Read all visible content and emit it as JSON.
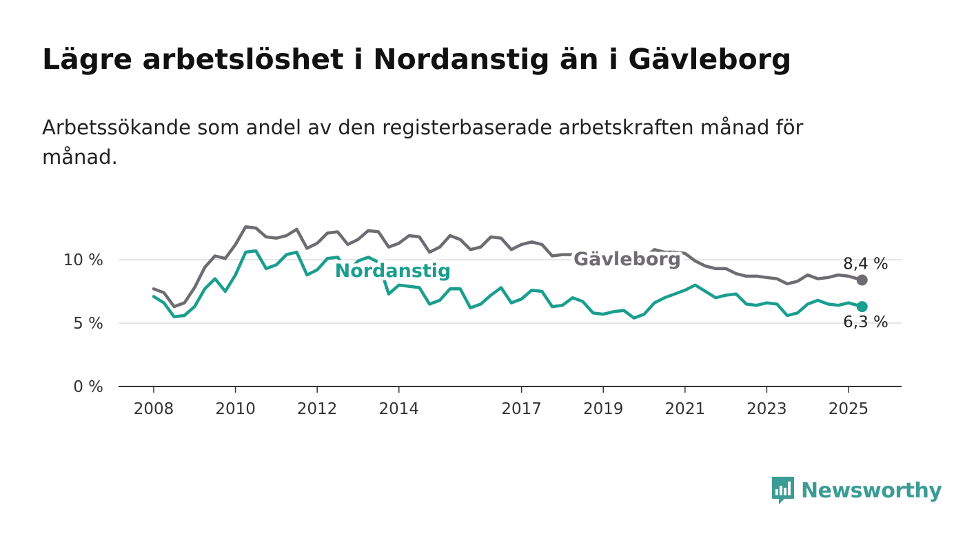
{
  "title": "Lägre arbetslöshet i Nordanstig än i Gävleborg",
  "subtitle": "Arbetssökande som andel av den registerbaserade arbetskraften månad för månad.",
  "brand": {
    "name": "Newsworthy",
    "color": "#3a9c94"
  },
  "chart_data": {
    "type": "line",
    "x_ticks": [
      "2008",
      "2010",
      "2012",
      "2014",
      "2017",
      "2019",
      "2021",
      "2023",
      "2025"
    ],
    "y_ticks": [
      "0 %",
      "5 %",
      "10 %"
    ],
    "ylim": [
      0,
      10
    ],
    "grid": true,
    "series": [
      {
        "name": "Gävleborg",
        "color": "#6e6c72",
        "end_label": "8,4 %",
        "points": [
          [
            "2008-01",
            7.7
          ],
          [
            "2008-04",
            7.4
          ],
          [
            "2008-07",
            6.3
          ],
          [
            "2008-10",
            6.6
          ],
          [
            "2009-01",
            7.8
          ],
          [
            "2009-04",
            9.4
          ],
          [
            "2009-07",
            10.3
          ],
          [
            "2009-10",
            10.1
          ],
          [
            "2010-01",
            11.2
          ],
          [
            "2010-04",
            12.6
          ],
          [
            "2010-07",
            12.5
          ],
          [
            "2010-10",
            11.8
          ],
          [
            "2011-01",
            11.7
          ],
          [
            "2011-04",
            11.9
          ],
          [
            "2011-07",
            12.4
          ],
          [
            "2011-10",
            10.9
          ],
          [
            "2012-01",
            11.3
          ],
          [
            "2012-04",
            12.1
          ],
          [
            "2012-07",
            12.2
          ],
          [
            "2012-10",
            11.2
          ],
          [
            "2013-01",
            11.6
          ],
          [
            "2013-04",
            12.3
          ],
          [
            "2013-07",
            12.2
          ],
          [
            "2013-10",
            11.0
          ],
          [
            "2014-01",
            11.3
          ],
          [
            "2014-04",
            11.9
          ],
          [
            "2014-07",
            11.8
          ],
          [
            "2014-10",
            10.6
          ],
          [
            "2015-01",
            11.0
          ],
          [
            "2015-04",
            11.9
          ],
          [
            "2015-07",
            11.6
          ],
          [
            "2015-10",
            10.8
          ],
          [
            "2016-01",
            11.0
          ],
          [
            "2016-04",
            11.8
          ],
          [
            "2016-07",
            11.7
          ],
          [
            "2016-10",
            10.8
          ],
          [
            "2017-01",
            11.2
          ],
          [
            "2017-04",
            11.4
          ],
          [
            "2017-07",
            11.2
          ],
          [
            "2017-10",
            10.3
          ],
          [
            "2018-01",
            10.4
          ],
          [
            "2018-04",
            10.4
          ],
          [
            "2018-07",
            10.0
          ],
          [
            "2018-10",
            9.6
          ],
          [
            "2019-01",
            9.8
          ],
          [
            "2019-04",
            10.0
          ],
          [
            "2019-07",
            9.8
          ],
          [
            "2019-10",
            9.6
          ],
          [
            "2020-01",
            10.1
          ],
          [
            "2020-04",
            10.8
          ],
          [
            "2020-07",
            10.6
          ],
          [
            "2020-10",
            10.6
          ],
          [
            "2021-01",
            10.5
          ],
          [
            "2021-04",
            9.9
          ],
          [
            "2021-07",
            9.5
          ],
          [
            "2021-10",
            9.3
          ],
          [
            "2022-01",
            9.3
          ],
          [
            "2022-04",
            8.9
          ],
          [
            "2022-07",
            8.7
          ],
          [
            "2022-10",
            8.7
          ],
          [
            "2023-01",
            8.6
          ],
          [
            "2023-04",
            8.5
          ],
          [
            "2023-07",
            8.1
          ],
          [
            "2023-10",
            8.3
          ],
          [
            "2024-01",
            8.8
          ],
          [
            "2024-04",
            8.5
          ],
          [
            "2024-07",
            8.6
          ],
          [
            "2024-10",
            8.8
          ],
          [
            "2025-01",
            8.7
          ],
          [
            "2025-05",
            8.4
          ]
        ]
      },
      {
        "name": "Nordanstig",
        "color": "#1a9e8f",
        "end_label": "6,3 %",
        "points": [
          [
            "2008-01",
            7.1
          ],
          [
            "2008-04",
            6.6
          ],
          [
            "2008-07",
            5.5
          ],
          [
            "2008-10",
            5.6
          ],
          [
            "2009-01",
            6.3
          ],
          [
            "2009-04",
            7.7
          ],
          [
            "2009-07",
            8.5
          ],
          [
            "2009-10",
            7.5
          ],
          [
            "2010-01",
            8.8
          ],
          [
            "2010-04",
            10.6
          ],
          [
            "2010-07",
            10.7
          ],
          [
            "2010-10",
            9.3
          ],
          [
            "2011-01",
            9.6
          ],
          [
            "2011-04",
            10.4
          ],
          [
            "2011-07",
            10.6
          ],
          [
            "2011-10",
            8.8
          ],
          [
            "2012-01",
            9.2
          ],
          [
            "2012-04",
            10.1
          ],
          [
            "2012-07",
            10.2
          ],
          [
            "2012-10",
            9.0
          ],
          [
            "2013-01",
            9.9
          ],
          [
            "2013-04",
            10.2
          ],
          [
            "2013-07",
            9.8
          ],
          [
            "2013-10",
            7.3
          ],
          [
            "2014-01",
            8.0
          ],
          [
            "2014-04",
            7.9
          ],
          [
            "2014-07",
            7.8
          ],
          [
            "2014-10",
            6.5
          ],
          [
            "2015-01",
            6.8
          ],
          [
            "2015-04",
            7.7
          ],
          [
            "2015-07",
            7.7
          ],
          [
            "2015-10",
            6.2
          ],
          [
            "2016-01",
            6.5
          ],
          [
            "2016-04",
            7.2
          ],
          [
            "2016-07",
            7.8
          ],
          [
            "2016-10",
            6.6
          ],
          [
            "2017-01",
            6.9
          ],
          [
            "2017-04",
            7.6
          ],
          [
            "2017-07",
            7.5
          ],
          [
            "2017-10",
            6.3
          ],
          [
            "2018-01",
            6.4
          ],
          [
            "2018-04",
            7.0
          ],
          [
            "2018-07",
            6.7
          ],
          [
            "2018-10",
            5.8
          ],
          [
            "2019-01",
            5.7
          ],
          [
            "2019-04",
            5.9
          ],
          [
            "2019-07",
            6.0
          ],
          [
            "2019-10",
            5.4
          ],
          [
            "2020-01",
            5.7
          ],
          [
            "2020-04",
            6.6
          ],
          [
            "2020-07",
            7.0
          ],
          [
            "2020-10",
            7.3
          ],
          [
            "2021-01",
            7.6
          ],
          [
            "2021-04",
            8.0
          ],
          [
            "2021-07",
            7.5
          ],
          [
            "2021-10",
            7.0
          ],
          [
            "2022-01",
            7.2
          ],
          [
            "2022-04",
            7.3
          ],
          [
            "2022-07",
            6.5
          ],
          [
            "2022-10",
            6.4
          ],
          [
            "2023-01",
            6.6
          ],
          [
            "2023-04",
            6.5
          ],
          [
            "2023-07",
            5.6
          ],
          [
            "2023-10",
            5.8
          ],
          [
            "2024-01",
            6.5
          ],
          [
            "2024-04",
            6.8
          ],
          [
            "2024-07",
            6.5
          ],
          [
            "2024-10",
            6.4
          ],
          [
            "2025-01",
            6.6
          ],
          [
            "2025-05",
            6.3
          ]
        ]
      }
    ]
  }
}
